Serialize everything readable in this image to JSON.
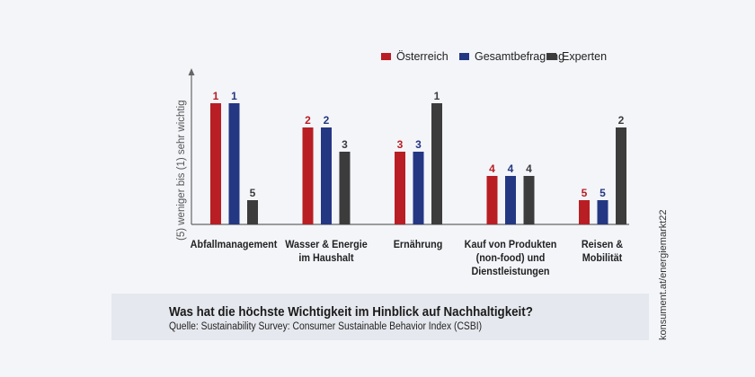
{
  "chart_data": {
    "type": "bar",
    "title": "Was hat die höchste Wichtigkeit im Hinblick auf Nachhaltigkeit?",
    "source": "Quelle: Sustainability Survey: Consumer Sustainable Behavior Index (CSBI)",
    "ylabel": "(5) weniger bis (1) sehr wichtig",
    "y_scale": "rank, reversed (1 = tallest bar, 5 = shortest)",
    "ylim": [
      5,
      1
    ],
    "grid": false,
    "legend_position": "top-right",
    "categories": [
      "Abfallmanagement",
      "Wasser & Energie im Haushalt",
      "Ernährung",
      "Kauf von Produkten (non-food) und Dienstleistungen",
      "Reisen & Mobilität"
    ],
    "category_lines": [
      [
        "Abfallmanagement"
      ],
      [
        "Wasser & Energie",
        "im Haushalt"
      ],
      [
        "Ernährung"
      ],
      [
        "Kauf von Produkten",
        "(non-food) und",
        "Dienstleistungen"
      ],
      [
        "Reisen &",
        "Mobilität"
      ]
    ],
    "series": [
      {
        "name": "Österreich",
        "color": "#b81e23",
        "values": [
          1,
          2,
          3,
          4,
          5
        ]
      },
      {
        "name": "Gesamtbefragung",
        "color": "#243782",
        "values": [
          1,
          2,
          3,
          4,
          5
        ]
      },
      {
        "name": "Experten",
        "color": "#3c3c3c",
        "values": [
          5,
          3,
          1,
          4,
          2
        ]
      }
    ]
  },
  "credit": "konsument.at/energiemarkt22"
}
